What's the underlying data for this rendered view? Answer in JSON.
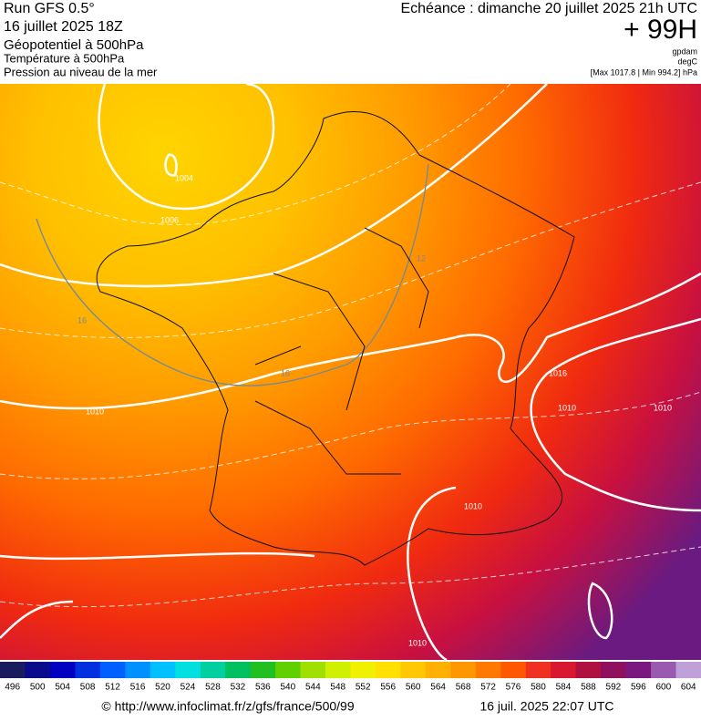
{
  "header": {
    "left": [
      "Run GFS 0.5°",
      "16 juillet 2025 18Z",
      "Géopotentiel à 500hPa",
      "Température à 500hPa",
      "Pression au niveau de la mer"
    ],
    "right": {
      "forecast": "Echéance : dimanche 20 juillet 2025 21h UTC",
      "lead": "+ 99H",
      "unit1": "gpdam",
      "unit2": "degC",
      "range": "[Max 1017.8 | Min 994.2] hPa"
    }
  },
  "map": {
    "labels": [
      "1004",
      "1006",
      "1010",
      "1010",
      "1010",
      "1010",
      "1016",
      "1010",
      "16",
      "12",
      "16"
    ]
  },
  "colorbar": {
    "ticks": [
      496,
      500,
      504,
      508,
      512,
      516,
      520,
      524,
      528,
      532,
      536,
      540,
      544,
      548,
      552,
      556,
      560,
      564,
      568,
      572,
      576,
      580,
      584,
      588,
      592,
      596,
      600,
      604
    ],
    "colors": [
      "#1a1a5e",
      "#0a0a8c",
      "#0000c0",
      "#0030e0",
      "#0060ff",
      "#0090ff",
      "#00c0ff",
      "#00e0e0",
      "#00d0a0",
      "#00c060",
      "#20c020",
      "#60d000",
      "#a0e000",
      "#d0f000",
      "#f0f000",
      "#ffe000",
      "#ffc800",
      "#ffb000",
      "#ff9800",
      "#ff7800",
      "#ff5800",
      "#f03020",
      "#d81830",
      "#b01040",
      "#901060",
      "#7a1880",
      "#9a5ab0",
      "#c0a0d8"
    ]
  },
  "footer": {
    "url": "© http://www.infoclimat.fr/z/gfs/france/500/99",
    "date": "16 juil. 2025 22:07 UTC"
  }
}
